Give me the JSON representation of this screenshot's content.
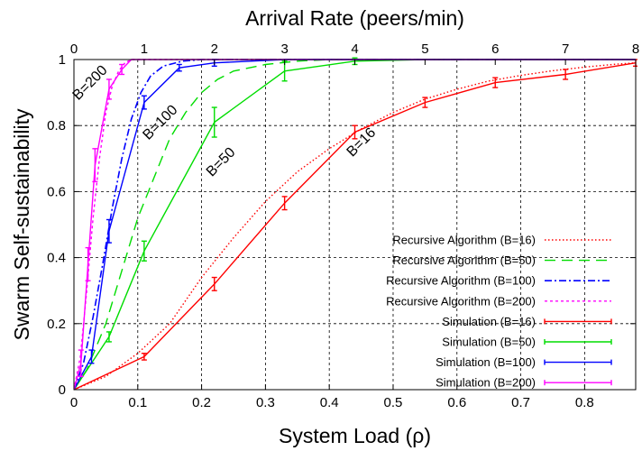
{
  "chart_data": {
    "type": "line",
    "title": "",
    "xlabel": "System Load (ρ)",
    "ylabel": "Swarm Self-sustainability",
    "x2label": "Arrival Rate (peers/min)",
    "xlim": [
      0,
      0.88
    ],
    "ylim": [
      0,
      1
    ],
    "x2lim": [
      0,
      8
    ],
    "x_ticks": [
      0,
      0.1,
      0.2,
      0.3,
      0.4,
      0.5,
      0.6,
      0.7,
      0.8
    ],
    "x_tick_labels": [
      "0",
      "0.1",
      "0.2",
      "0.3",
      "0.4",
      "0.5",
      "0.6",
      "0.7",
      "0.8"
    ],
    "y_ticks": [
      0,
      0.2,
      0.4,
      0.6,
      0.8,
      1
    ],
    "y_tick_labels": [
      "0",
      "0.2",
      "0.4",
      "0.6",
      "0.8",
      "1"
    ],
    "x2_ticks": [
      0,
      1,
      2,
      3,
      4,
      5,
      6,
      7,
      8
    ],
    "x2_tick_labels": [
      "0",
      "1",
      "2",
      "3",
      "4",
      "5",
      "6",
      "7",
      "8"
    ],
    "grid": true,
    "legend_position": "bottom-right",
    "series": [
      {
        "name": "Recursive Algorithm (B=16)",
        "color": "#ff0000",
        "dash": "dotted",
        "points": [
          [
            0,
            0
          ],
          [
            0.05,
            0.04
          ],
          [
            0.1,
            0.11
          ],
          [
            0.15,
            0.2
          ],
          [
            0.2,
            0.34
          ],
          [
            0.25,
            0.46
          ],
          [
            0.3,
            0.57
          ],
          [
            0.35,
            0.66
          ],
          [
            0.4,
            0.73
          ],
          [
            0.45,
            0.79
          ],
          [
            0.5,
            0.84
          ],
          [
            0.55,
            0.88
          ],
          [
            0.6,
            0.91
          ],
          [
            0.65,
            0.935
          ],
          [
            0.7,
            0.952
          ],
          [
            0.75,
            0.966
          ],
          [
            0.8,
            0.977
          ],
          [
            0.85,
            0.986
          ],
          [
            0.88,
            0.99
          ]
        ]
      },
      {
        "name": "Recursive Algorithm (B=50)",
        "color": "#00dd00",
        "dash": "dashed",
        "points": [
          [
            0,
            0
          ],
          [
            0.02,
            0.06
          ],
          [
            0.05,
            0.2
          ],
          [
            0.075,
            0.36
          ],
          [
            0.1,
            0.52
          ],
          [
            0.125,
            0.64
          ],
          [
            0.15,
            0.76
          ],
          [
            0.175,
            0.84
          ],
          [
            0.2,
            0.9
          ],
          [
            0.225,
            0.94
          ],
          [
            0.25,
            0.965
          ],
          [
            0.3,
            0.985
          ],
          [
            0.35,
            0.995
          ],
          [
            0.4,
            1
          ],
          [
            0.88,
            1
          ]
        ]
      },
      {
        "name": "Recursive Algorithm (B=100)",
        "color": "#0000ff",
        "dash": "dashdot",
        "points": [
          [
            0,
            0
          ],
          [
            0.015,
            0.08
          ],
          [
            0.03,
            0.22
          ],
          [
            0.045,
            0.38
          ],
          [
            0.06,
            0.55
          ],
          [
            0.075,
            0.7
          ],
          [
            0.09,
            0.82
          ],
          [
            0.105,
            0.9
          ],
          [
            0.12,
            0.95
          ],
          [
            0.14,
            0.98
          ],
          [
            0.17,
            0.995
          ],
          [
            0.2,
            1
          ],
          [
            0.88,
            1
          ]
        ]
      },
      {
        "name": "Recursive Algorithm (B=200)",
        "color": "#ff00ff",
        "dash": "shortdash",
        "points": [
          [
            0,
            0
          ],
          [
            0.01,
            0.1
          ],
          [
            0.02,
            0.3
          ],
          [
            0.03,
            0.52
          ],
          [
            0.04,
            0.7
          ],
          [
            0.05,
            0.84
          ],
          [
            0.06,
            0.92
          ],
          [
            0.07,
            0.965
          ],
          [
            0.08,
            0.99
          ],
          [
            0.09,
            1
          ],
          [
            0.88,
            1
          ]
        ]
      },
      {
        "name": "Simulation (B=16)",
        "color": "#ff0000",
        "dash": "solid",
        "points": [
          [
            0,
            0
          ],
          [
            0.11,
            0.1
          ],
          [
            0.22,
            0.32
          ],
          [
            0.33,
            0.565
          ],
          [
            0.44,
            0.78
          ],
          [
            0.55,
            0.87
          ],
          [
            0.66,
            0.93
          ],
          [
            0.77,
            0.955
          ],
          [
            0.88,
            0.99
          ]
        ],
        "errors": [
          0,
          0.01,
          0.02,
          0.02,
          0.02,
          0.015,
          0.015,
          0.015,
          0.01
        ]
      },
      {
        "name": "Simulation (B=50)",
        "color": "#00dd00",
        "dash": "solid",
        "points": [
          [
            0,
            0
          ],
          [
            0.055,
            0.16
          ],
          [
            0.11,
            0.42
          ],
          [
            0.22,
            0.81
          ],
          [
            0.33,
            0.965
          ],
          [
            0.44,
            0.995
          ],
          [
            0.55,
            1
          ],
          [
            0.88,
            1
          ]
        ],
        "errors": [
          0,
          0.015,
          0.03,
          0.045,
          0.03,
          0.01,
          0,
          0
        ]
      },
      {
        "name": "Simulation (B=100)",
        "color": "#0000ff",
        "dash": "solid",
        "points": [
          [
            0,
            0
          ],
          [
            0.0275,
            0.1
          ],
          [
            0.055,
            0.48
          ],
          [
            0.11,
            0.87
          ],
          [
            0.165,
            0.975
          ],
          [
            0.22,
            0.99
          ],
          [
            0.33,
            1
          ],
          [
            0.88,
            1
          ]
        ],
        "errors": [
          0,
          0.02,
          0.035,
          0.02,
          0.01,
          0.01,
          0,
          0
        ]
      },
      {
        "name": "Simulation (B=200)",
        "color": "#ff00ff",
        "dash": "solid",
        "points": [
          [
            0,
            0
          ],
          [
            0.011,
            0.08
          ],
          [
            0.022,
            0.38
          ],
          [
            0.033,
            0.68
          ],
          [
            0.055,
            0.91
          ],
          [
            0.075,
            0.97
          ],
          [
            0.09,
            1
          ],
          [
            0.88,
            1
          ]
        ],
        "errors": [
          0,
          0.04,
          0.05,
          0.05,
          0.03,
          0.015,
          0,
          0
        ]
      }
    ],
    "annotations": [
      {
        "text": "B=16",
        "x": 0.455,
        "y": 0.74,
        "angle": -45
      },
      {
        "text": "B=50",
        "x": 0.235,
        "y": 0.68,
        "angle": -45
      },
      {
        "text": "B=100",
        "x": 0.14,
        "y": 0.8,
        "angle": -45
      },
      {
        "text": "B=200",
        "x": 0.03,
        "y": 0.92,
        "angle": -45
      }
    ]
  }
}
